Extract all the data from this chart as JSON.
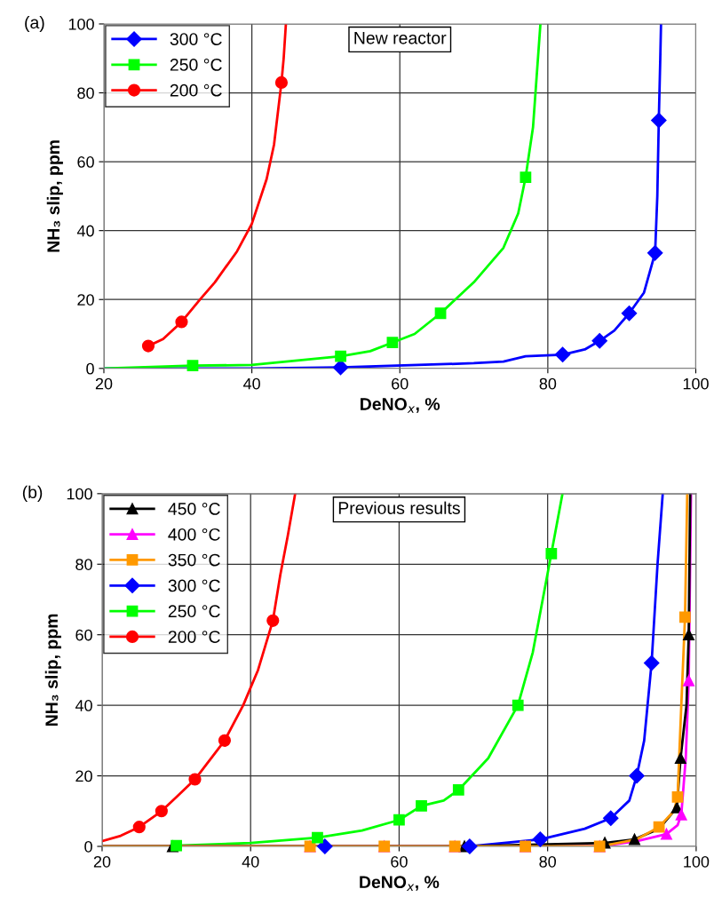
{
  "chart_data": [
    {
      "type": "line",
      "title": "(a)",
      "xlabel": "DeNO$_{x}$, %",
      "ylabel": "NH₃ slip, ppm",
      "annotations": [
        "New reactor"
      ],
      "xlim": [
        20,
        100
      ],
      "xticks": [
        20,
        40,
        60,
        80,
        100
      ],
      "ylim": [
        0,
        100
      ],
      "yticks": [
        0,
        20,
        40,
        60,
        80,
        100
      ],
      "grid": true,
      "legend": "top left",
      "line_style": "solid",
      "series": [
        {
          "color": "#0000ff",
          "marker": "none",
          "x": [
            20,
            40,
            52,
            70,
            74,
            77,
            82,
            85,
            87,
            89,
            91,
            93,
            94.5,
            94.8,
            95,
            95.2,
            95.3
          ],
          "values": [
            0,
            0,
            0.3,
            1.5,
            2,
            3.5,
            4,
            5.5,
            8,
            11,
            16,
            22,
            33.5,
            50,
            72,
            90,
            100
          ]
        },
        {
          "color": "#00ff00",
          "marker": "none",
          "x": [
            20,
            32,
            40,
            52,
            56,
            59,
            62,
            65.5,
            70,
            74,
            76,
            77,
            78,
            78.5,
            79
          ],
          "values": [
            0,
            0.8,
            1,
            3.5,
            5,
            7.5,
            10,
            16,
            25,
            35,
            45,
            55.5,
            70,
            85,
            100
          ]
        },
        {
          "color": "#ff0000",
          "marker": "none",
          "x": [
            26,
            28,
            30.5,
            33,
            35,
            38,
            40,
            42,
            43,
            44,
            44.3,
            44.6
          ],
          "values": [
            6.5,
            8.5,
            13.5,
            20,
            25,
            34,
            42,
            55,
            65,
            83,
            90,
            100
          ]
        },
        {
          "type": "scatter",
          "name": "300 °C",
          "color": "#0000ff",
          "marker": "diamond",
          "x": [
            52,
            82,
            87,
            91,
            94.5,
            95
          ],
          "values": [
            0.3,
            4,
            8,
            16,
            33.5,
            72
          ]
        },
        {
          "type": "scatter",
          "name": "250 °C",
          "color": "#00ff00",
          "marker": "square",
          "x": [
            32,
            52,
            59,
            65.5,
            77
          ],
          "values": [
            0.8,
            3.5,
            7.5,
            16,
            55.5
          ]
        },
        {
          "type": "scatter",
          "name": "200 °C",
          "color": "#ff0000",
          "marker": "circle",
          "x": [
            26,
            30.5,
            44
          ],
          "values": [
            6.5,
            13.5,
            83
          ]
        }
      ]
    },
    {
      "type": "line",
      "title": "(b)",
      "xlabel": "DeNO$_{x}$, %",
      "ylabel": "NH₃ slip, ppm",
      "annotations": [
        "Previous results"
      ],
      "xlim": [
        20,
        100
      ],
      "xticks": [
        20,
        40,
        60,
        80,
        100
      ],
      "ylim": [
        0,
        100
      ],
      "yticks": [
        0,
        20,
        40,
        60,
        80,
        100
      ],
      "grid": true,
      "legend": "top left",
      "line_style": "solid",
      "series": [
        {
          "color": "#ff0000",
          "marker": "none",
          "x": [
            20,
            22.5,
            25,
            28,
            30,
            32.5,
            36.5,
            39,
            41,
            42,
            43,
            44,
            45,
            46
          ],
          "values": [
            1.5,
            3,
            5.5,
            10,
            14,
            19,
            30,
            40,
            50,
            57,
            64,
            77,
            88,
            100
          ]
        },
        {
          "color": "#00ff00",
          "marker": "none",
          "x": [
            20,
            30,
            40,
            49,
            55,
            60,
            63,
            66,
            68,
            72,
            76,
            78,
            80.5,
            82
          ],
          "values": [
            0,
            0.2,
            1,
            2.5,
            4.5,
            7.5,
            11.5,
            13,
            16,
            25,
            40,
            55,
            83,
            100
          ]
        },
        {
          "color": "#0000ff",
          "marker": "none",
          "x": [
            20,
            69.5,
            79,
            85,
            88.5,
            91,
            92,
            93,
            94,
            94.8,
            95.5
          ],
          "values": [
            0,
            0,
            2,
            5,
            8,
            13,
            20,
            30,
            52,
            80,
            100
          ]
        },
        {
          "color": "#ff00ff",
          "marker": "none",
          "x": [
            20,
            87,
            92,
            96,
            97.5,
            98,
            98.6,
            99,
            99.3
          ],
          "values": [
            0,
            0,
            1.5,
            3.5,
            6,
            9,
            25,
            47,
            100
          ]
        },
        {
          "color": "#000000",
          "marker": "none",
          "x": [
            20,
            68.8,
            87.7,
            91.7,
            95,
            97.4,
            97.9,
            98.7,
            99,
            99.2
          ],
          "values": [
            0,
            0,
            1,
            2,
            5,
            11,
            25,
            40,
            60,
            100
          ]
        },
        {
          "color": "#ff9900",
          "marker": "none",
          "x": [
            20,
            87,
            92,
            95,
            97,
            97.5,
            98,
            98.5,
            98.8
          ],
          "values": [
            0,
            0,
            2,
            5.5,
            10,
            14,
            40,
            65,
            100
          ]
        },
        {
          "type": "scatter",
          "name": "450 °C",
          "color": "#000000",
          "marker": "triangle",
          "x": [
            29.5,
            68.8,
            87.7,
            91.7,
            97.4,
            97.9,
            99
          ],
          "values": [
            0,
            0,
            1,
            2,
            11,
            25,
            60
          ]
        },
        {
          "type": "scatter",
          "name": "400 °C",
          "color": "#ff00ff",
          "marker": "triangle",
          "x": [
            48,
            58,
            67.5,
            77,
            87,
            96,
            98,
            99
          ],
          "values": [
            0,
            0,
            0,
            0,
            0,
            3.5,
            9,
            47
          ]
        },
        {
          "type": "scatter",
          "name": "350 °C",
          "color": "#ff9900",
          "marker": "square",
          "x": [
            48,
            58,
            67.5,
            77,
            87,
            95,
            97.5,
            98.5
          ],
          "values": [
            0,
            0,
            0,
            0,
            0,
            5.5,
            14,
            65
          ]
        },
        {
          "type": "scatter",
          "name": "300 °C",
          "color": "#0000ff",
          "marker": "diamond",
          "x": [
            50,
            69.5,
            79,
            88.5,
            92,
            94
          ],
          "values": [
            0,
            0,
            2,
            8,
            20,
            52
          ]
        },
        {
          "type": "scatter",
          "name": "250 °C",
          "color": "#00ff00",
          "marker": "square",
          "x": [
            30,
            49,
            60,
            63,
            68,
            76,
            80.5
          ],
          "values": [
            0.2,
            2.5,
            7.5,
            11.5,
            16,
            40,
            83
          ]
        },
        {
          "type": "scatter",
          "name": "200 °C",
          "color": "#ff0000",
          "marker": "circle",
          "x": [
            25,
            28,
            32.5,
            36.5,
            43
          ],
          "values": [
            5.5,
            10,
            19,
            30,
            64
          ]
        }
      ]
    }
  ]
}
